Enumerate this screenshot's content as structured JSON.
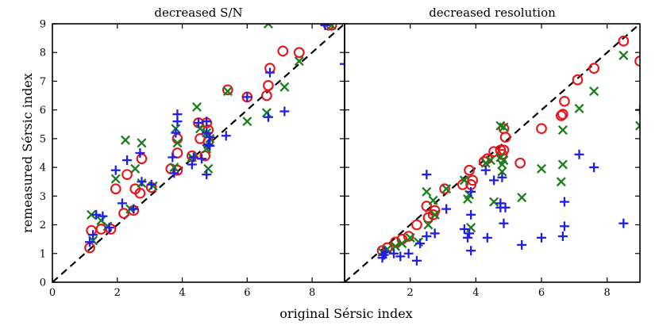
{
  "figure": {
    "xlabel": "original Sérsic index",
    "ylabel": "remeasured Sérsic index"
  },
  "colors": {
    "circle": "#e8141b",
    "x": "#1a7f1a",
    "plus": "#1f1fe6",
    "diagonal": "#000000"
  },
  "chart_data": [
    {
      "type": "scatter",
      "title": "decreased S/N",
      "xlim": [
        0,
        9
      ],
      "ylim": [
        0,
        9
      ],
      "xticks": [
        0,
        2,
        4,
        6,
        8
      ],
      "yticks": [
        0,
        1,
        2,
        3,
        4,
        5,
        6,
        7,
        8,
        9
      ],
      "reference_line": "y = x (dashed)",
      "series": [
        {
          "name": "circles",
          "marker": "circle",
          "points": [
            [
              1.15,
              1.2
            ],
            [
              1.2,
              1.8
            ],
            [
              1.5,
              1.85
            ],
            [
              1.8,
              1.85
            ],
            [
              1.95,
              3.25
            ],
            [
              2.2,
              2.4
            ],
            [
              2.3,
              3.75
            ],
            [
              2.5,
              2.5
            ],
            [
              2.55,
              3.25
            ],
            [
              2.7,
              3.1
            ],
            [
              2.75,
              4.3
            ],
            [
              3.05,
              3.3
            ],
            [
              3.65,
              3.95
            ],
            [
              3.85,
              3.9
            ],
            [
              3.85,
              4.5
            ],
            [
              3.85,
              5.0
            ],
            [
              4.3,
              4.4
            ],
            [
              4.5,
              5.55
            ],
            [
              4.55,
              5.0
            ],
            [
              4.7,
              4.4
            ],
            [
              4.75,
              5.55
            ],
            [
              4.8,
              4.9
            ],
            [
              4.8,
              5.3
            ],
            [
              5.4,
              6.7
            ],
            [
              6.0,
              6.45
            ],
            [
              6.6,
              6.5
            ],
            [
              6.65,
              6.85
            ],
            [
              6.7,
              7.45
            ],
            [
              7.1,
              8.05
            ],
            [
              7.6,
              8.0
            ],
            [
              8.5,
              8.95
            ],
            [
              8.6,
              8.95
            ]
          ]
        },
        {
          "name": "crosses",
          "marker": "x",
          "points": [
            [
              1.2,
              2.35
            ],
            [
              1.25,
              1.45
            ],
            [
              1.5,
              2.15
            ],
            [
              1.7,
              1.95
            ],
            [
              1.95,
              3.6
            ],
            [
              2.25,
              4.95
            ],
            [
              2.4,
              2.55
            ],
            [
              2.55,
              3.95
            ],
            [
              2.75,
              3.45
            ],
            [
              2.75,
              4.85
            ],
            [
              3.1,
              3.35
            ],
            [
              3.75,
              4.0
            ],
            [
              3.8,
              5.35
            ],
            [
              3.85,
              4.85
            ],
            [
              4.3,
              4.35
            ],
            [
              4.45,
              6.1
            ],
            [
              4.55,
              5.35
            ],
            [
              4.75,
              5.2
            ],
            [
              4.75,
              4.65
            ],
            [
              4.8,
              3.95
            ],
            [
              4.85,
              5.0
            ],
            [
              5.4,
              6.65
            ],
            [
              6.0,
              5.6
            ],
            [
              6.6,
              5.9
            ],
            [
              6.65,
              9.0
            ],
            [
              7.6,
              7.7
            ],
            [
              7.15,
              6.8
            ],
            [
              8.6,
              8.95
            ]
          ]
        },
        {
          "name": "pluses",
          "marker": "plus",
          "points": [
            [
              1.15,
              1.4
            ],
            [
              1.25,
              1.65
            ],
            [
              1.35,
              2.35
            ],
            [
              1.55,
              2.3
            ],
            [
              1.75,
              1.9
            ],
            [
              1.95,
              3.9
            ],
            [
              2.15,
              2.75
            ],
            [
              2.3,
              4.25
            ],
            [
              2.5,
              2.55
            ],
            [
              2.7,
              4.5
            ],
            [
              2.75,
              3.5
            ],
            [
              3.05,
              3.4
            ],
            [
              3.7,
              4.35
            ],
            [
              3.75,
              3.8
            ],
            [
              3.8,
              5.2
            ],
            [
              3.85,
              5.6
            ],
            [
              3.85,
              5.85
            ],
            [
              4.3,
              4.1
            ],
            [
              4.35,
              4.35
            ],
            [
              4.5,
              5.55
            ],
            [
              4.6,
              4.3
            ],
            [
              4.75,
              3.75
            ],
            [
              4.75,
              5.2
            ],
            [
              4.75,
              5.6
            ],
            [
              4.8,
              4.8
            ],
            [
              4.85,
              4.75
            ],
            [
              4.85,
              5.05
            ],
            [
              5.35,
              5.1
            ],
            [
              6.0,
              6.45
            ],
            [
              6.65,
              5.75
            ],
            [
              6.7,
              7.3
            ],
            [
              7.15,
              5.95
            ],
            [
              8.4,
              8.95
            ],
            [
              9.0,
              7.6
            ]
          ]
        }
      ]
    },
    {
      "type": "scatter",
      "title": "decreased resolution",
      "xlim": [
        0,
        9
      ],
      "ylim": [
        0,
        9
      ],
      "xticks": [
        2,
        4,
        6,
        8
      ],
      "yticks": [
        0,
        1,
        2,
        3,
        4,
        5,
        6,
        7,
        8,
        9
      ],
      "reference_line": "y = x (dashed)",
      "series": [
        {
          "name": "circles",
          "marker": "circle",
          "points": [
            [
              1.15,
              1.1
            ],
            [
              1.3,
              1.2
            ],
            [
              1.55,
              1.4
            ],
            [
              1.75,
              1.5
            ],
            [
              1.95,
              1.6
            ],
            [
              2.2,
              2.0
            ],
            [
              2.5,
              2.65
            ],
            [
              2.55,
              2.25
            ],
            [
              2.7,
              2.35
            ],
            [
              2.75,
              2.5
            ],
            [
              3.05,
              3.25
            ],
            [
              3.6,
              3.4
            ],
            [
              3.8,
              3.9
            ],
            [
              3.85,
              3.4
            ],
            [
              3.9,
              3.55
            ],
            [
              4.25,
              4.2
            ],
            [
              4.35,
              4.3
            ],
            [
              4.55,
              4.55
            ],
            [
              4.75,
              4.6
            ],
            [
              4.8,
              4.45
            ],
            [
              4.85,
              4.6
            ],
            [
              4.85,
              5.35
            ],
            [
              4.9,
              5.05
            ],
            [
              5.35,
              4.15
            ],
            [
              6.0,
              5.35
            ],
            [
              6.6,
              5.8
            ],
            [
              6.65,
              5.85
            ],
            [
              6.7,
              6.3
            ],
            [
              7.1,
              7.05
            ],
            [
              7.6,
              7.45
            ],
            [
              8.5,
              8.4
            ],
            [
              9.0,
              7.7
            ]
          ]
        },
        {
          "name": "crosses",
          "marker": "x",
          "points": [
            [
              1.15,
              1.05
            ],
            [
              1.3,
              1.15
            ],
            [
              1.55,
              1.25
            ],
            [
              1.75,
              1.35
            ],
            [
              2.0,
              1.55
            ],
            [
              2.25,
              1.4
            ],
            [
              2.5,
              3.15
            ],
            [
              2.55,
              2.0
            ],
            [
              2.75,
              2.35
            ],
            [
              2.7,
              2.85
            ],
            [
              3.1,
              3.25
            ],
            [
              3.65,
              3.55
            ],
            [
              3.75,
              2.9
            ],
            [
              3.8,
              3.05
            ],
            [
              3.85,
              1.9
            ],
            [
              4.3,
              4.15
            ],
            [
              4.45,
              4.25
            ],
            [
              4.55,
              2.8
            ],
            [
              4.75,
              4.35
            ],
            [
              4.75,
              5.45
            ],
            [
              4.8,
              4.1
            ],
            [
              4.8,
              3.85
            ],
            [
              4.85,
              4.25
            ],
            [
              4.85,
              5.4
            ],
            [
              5.4,
              2.95
            ],
            [
              6.0,
              3.95
            ],
            [
              6.6,
              3.5
            ],
            [
              6.65,
              4.1
            ],
            [
              6.65,
              5.3
            ],
            [
              7.15,
              6.05
            ],
            [
              7.6,
              6.65
            ],
            [
              8.5,
              7.9
            ],
            [
              9.0,
              5.45
            ]
          ]
        },
        {
          "name": "pluses",
          "marker": "plus",
          "points": [
            [
              1.15,
              0.85
            ],
            [
              1.2,
              0.95
            ],
            [
              1.25,
              1.05
            ],
            [
              1.5,
              1.0
            ],
            [
              1.7,
              0.9
            ],
            [
              1.95,
              1.0
            ],
            [
              2.2,
              0.75
            ],
            [
              2.3,
              1.35
            ],
            [
              2.5,
              3.75
            ],
            [
              2.5,
              1.6
            ],
            [
              2.75,
              1.7
            ],
            [
              3.1,
              2.55
            ],
            [
              3.65,
              1.85
            ],
            [
              3.75,
              1.55
            ],
            [
              3.8,
              1.7
            ],
            [
              3.85,
              1.1
            ],
            [
              3.85,
              2.35
            ],
            [
              3.85,
              3.15
            ],
            [
              4.3,
              3.9
            ],
            [
              4.35,
              1.55
            ],
            [
              4.55,
              3.55
            ],
            [
              4.75,
              2.6
            ],
            [
              4.75,
              2.75
            ],
            [
              4.8,
              3.65
            ],
            [
              4.85,
              2.05
            ],
            [
              4.9,
              2.6
            ],
            [
              5.4,
              1.3
            ],
            [
              6.0,
              1.55
            ],
            [
              6.65,
              1.6
            ],
            [
              6.7,
              1.95
            ],
            [
              6.7,
              2.8
            ],
            [
              7.15,
              4.45
            ],
            [
              7.6,
              4.0
            ],
            [
              8.5,
              2.05
            ],
            [
              9.0,
              6.0
            ]
          ]
        }
      ]
    }
  ]
}
